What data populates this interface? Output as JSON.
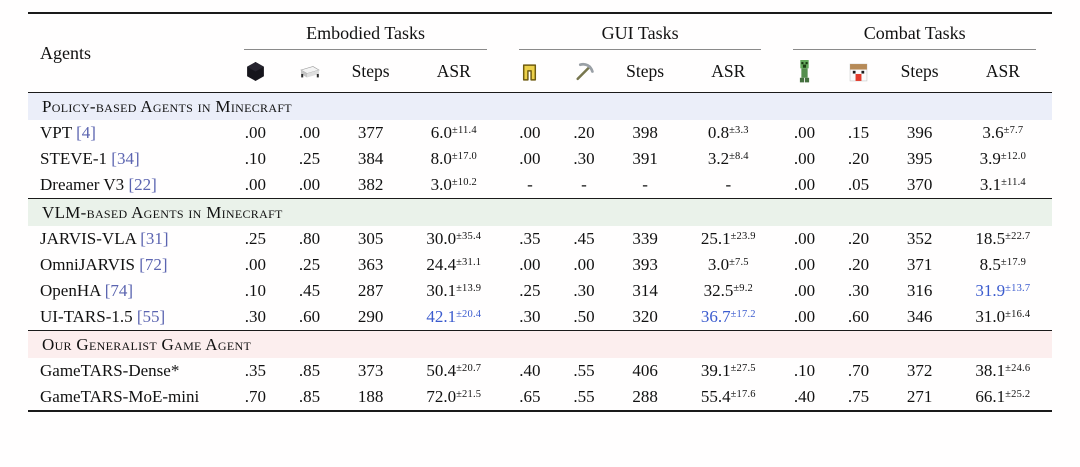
{
  "table": {
    "agents_header": "Agents",
    "groups": [
      {
        "label": "Embodied Tasks",
        "icons": [
          "obsidian-block-icon",
          "bed-icon"
        ],
        "cols": [
          "Steps",
          "ASR"
        ]
      },
      {
        "label": "GUI Tasks",
        "icons": [
          "golden-leggings-icon",
          "pickaxe-icon"
        ],
        "cols": [
          "Steps",
          "ASR"
        ]
      },
      {
        "label": "Combat Tasks",
        "icons": [
          "creeper-icon",
          "chicken-icon"
        ],
        "cols": [
          "Steps",
          "ASR"
        ]
      }
    ],
    "accent_colors": {
      "citation": "#5b64b0",
      "highlight": "#3b5bce",
      "policy_band": "#ebeef9",
      "vlm_band": "#eaf2ea",
      "ours_band": "#fceeee"
    },
    "sections": [
      {
        "title": "Policy-based Agents in Minecraft",
        "bg": "#ebeef9",
        "rows": [
          {
            "agent": "VPT",
            "cite": "[4]",
            "cells": [
              {
                "v": ".00"
              },
              {
                "v": ".00"
              },
              {
                "v": "377"
              },
              {
                "v": "6.0",
                "sup": "±11.4"
              },
              {
                "v": ".00"
              },
              {
                "v": ".20"
              },
              {
                "v": "398"
              },
              {
                "v": "0.8",
                "sup": "±3.3"
              },
              {
                "v": ".00"
              },
              {
                "v": ".15"
              },
              {
                "v": "396"
              },
              {
                "v": "3.6",
                "sup": "±7.7"
              }
            ]
          },
          {
            "agent": "STEVE-1",
            "cite": "[34]",
            "cells": [
              {
                "v": ".10"
              },
              {
                "v": ".25"
              },
              {
                "v": "384"
              },
              {
                "v": "8.0",
                "sup": "±17.0"
              },
              {
                "v": ".00"
              },
              {
                "v": ".30"
              },
              {
                "v": "391"
              },
              {
                "v": "3.2",
                "sup": "±8.4"
              },
              {
                "v": ".00"
              },
              {
                "v": ".20"
              },
              {
                "v": "395"
              },
              {
                "v": "3.9",
                "sup": "±12.0"
              }
            ]
          },
          {
            "agent": "Dreamer V3",
            "cite": "[22]",
            "cells": [
              {
                "v": ".00"
              },
              {
                "v": ".00"
              },
              {
                "v": "382"
              },
              {
                "v": "3.0",
                "sup": "±10.2"
              },
              {
                "v": "-"
              },
              {
                "v": "-"
              },
              {
                "v": "-"
              },
              {
                "v": "-"
              },
              {
                "v": ".00"
              },
              {
                "v": ".05"
              },
              {
                "v": "370"
              },
              {
                "v": "3.1",
                "sup": "±11.4"
              }
            ]
          }
        ]
      },
      {
        "title": "VLM-based Agents in Minecraft",
        "bg": "#eaf2ea",
        "rows": [
          {
            "agent": "JARVIS-VLA",
            "cite": "[31]",
            "cells": [
              {
                "v": ".25"
              },
              {
                "v": ".80"
              },
              {
                "v": "305"
              },
              {
                "v": "30.0",
                "sup": "±35.4"
              },
              {
                "v": ".35"
              },
              {
                "v": ".45"
              },
              {
                "v": "339"
              },
              {
                "v": "25.1",
                "sup": "±23.9"
              },
              {
                "v": ".00"
              },
              {
                "v": ".20"
              },
              {
                "v": "352"
              },
              {
                "v": "18.5",
                "sup": "±22.7"
              }
            ]
          },
          {
            "agent": "OmniJARVIS",
            "cite": "[72]",
            "cells": [
              {
                "v": ".00"
              },
              {
                "v": ".25"
              },
              {
                "v": "363"
              },
              {
                "v": "24.4",
                "sup": "±31.1"
              },
              {
                "v": ".00"
              },
              {
                "v": ".00"
              },
              {
                "v": "393"
              },
              {
                "v": "3.0",
                "sup": "±7.5"
              },
              {
                "v": ".00"
              },
              {
                "v": ".20"
              },
              {
                "v": "371"
              },
              {
                "v": "8.5",
                "sup": "±17.9"
              }
            ]
          },
          {
            "agent": "OpenHA",
            "cite": "[74]",
            "cells": [
              {
                "v": ".10"
              },
              {
                "v": ".45"
              },
              {
                "v": "287"
              },
              {
                "v": "30.1",
                "sup": "±13.9"
              },
              {
                "v": ".25"
              },
              {
                "v": ".30"
              },
              {
                "v": "314"
              },
              {
                "v": "32.5",
                "sup": "±9.2"
              },
              {
                "v": ".00"
              },
              {
                "v": ".30"
              },
              {
                "v": "316"
              },
              {
                "v": "31.9",
                "sup": "±13.7",
                "hl": true
              }
            ]
          },
          {
            "agent": "UI-TARS-1.5",
            "cite": "[55]",
            "cells": [
              {
                "v": ".30"
              },
              {
                "v": ".60"
              },
              {
                "v": "290"
              },
              {
                "v": "42.1",
                "sup": "±20.4",
                "hl": true
              },
              {
                "v": ".30"
              },
              {
                "v": ".50"
              },
              {
                "v": "320"
              },
              {
                "v": "36.7",
                "sup": "±17.2",
                "hl": true
              },
              {
                "v": ".00"
              },
              {
                "v": ".60"
              },
              {
                "v": "346"
              },
              {
                "v": "31.0",
                "sup": "±16.4"
              }
            ]
          }
        ]
      },
      {
        "title": "Our Generalist Game Agent",
        "bg": "#fceeee",
        "rows": [
          {
            "agent": "GameTARS-Dense*",
            "cite": "",
            "cells": [
              {
                "v": ".35"
              },
              {
                "v": ".85"
              },
              {
                "v": "373"
              },
              {
                "v": "50.4",
                "sup": "±20.7"
              },
              {
                "v": ".40"
              },
              {
                "v": ".55"
              },
              {
                "v": "406"
              },
              {
                "v": "39.1",
                "sup": "±27.5"
              },
              {
                "v": ".10"
              },
              {
                "v": ".70"
              },
              {
                "v": "372"
              },
              {
                "v": "38.1",
                "sup": "±24.6"
              }
            ]
          },
          {
            "agent": "GameTARS-MoE-mini",
            "cite": "",
            "cells": [
              {
                "v": ".70"
              },
              {
                "v": ".85"
              },
              {
                "v": "188"
              },
              {
                "v": "72.0",
                "sup": "±21.5"
              },
              {
                "v": ".65"
              },
              {
                "v": ".55"
              },
              {
                "v": "288"
              },
              {
                "v": "55.4",
                "sup": "±17.6"
              },
              {
                "v": ".40"
              },
              {
                "v": ".75"
              },
              {
                "v": "271"
              },
              {
                "v": "66.1",
                "sup": "±25.2"
              }
            ]
          }
        ]
      }
    ]
  }
}
